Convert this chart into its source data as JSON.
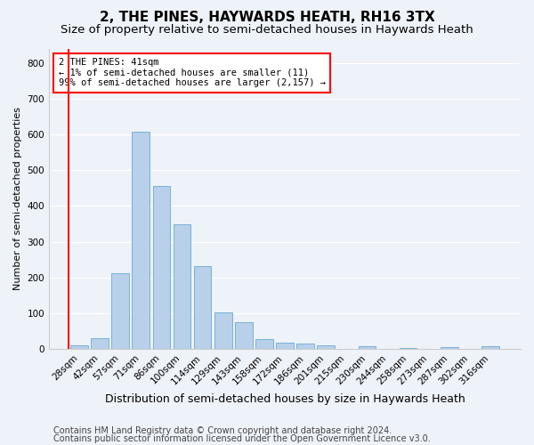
{
  "title": "2, THE PINES, HAYWARDS HEATH, RH16 3TX",
  "subtitle": "Size of property relative to semi-detached houses in Haywards Heath",
  "xlabel": "Distribution of semi-detached houses by size in Haywards Heath",
  "ylabel": "Number of semi-detached properties",
  "categories": [
    "28sqm",
    "42sqm",
    "57sqm",
    "71sqm",
    "86sqm",
    "100sqm",
    "114sqm",
    "129sqm",
    "143sqm",
    "158sqm",
    "172sqm",
    "186sqm",
    "201sqm",
    "215sqm",
    "230sqm",
    "244sqm",
    "258sqm",
    "273sqm",
    "287sqm",
    "302sqm",
    "316sqm"
  ],
  "values": [
    11,
    30,
    213,
    608,
    457,
    348,
    232,
    101,
    75,
    28,
    17,
    16,
    10,
    0,
    8,
    0,
    3,
    0,
    5,
    0,
    7
  ],
  "bar_color": "#b8d0ea",
  "bar_edge_color": "#6aaad4",
  "annotation_text": "2 THE PINES: 41sqm\n← 1% of semi-detached houses are smaller (11)\n99% of semi-detached houses are larger (2,157) →",
  "annotation_box_color": "white",
  "annotation_box_edge_color": "red",
  "vline_color": "red",
  "vline_x": -0.5,
  "ylim": [
    0,
    840
  ],
  "yticks": [
    0,
    100,
    200,
    300,
    400,
    500,
    600,
    700,
    800
  ],
  "footer1": "Contains HM Land Registry data © Crown copyright and database right 2024.",
  "footer2": "Contains public sector information licensed under the Open Government Licence v3.0.",
  "background_color": "#eef2f9",
  "grid_color": "#ffffff",
  "title_fontsize": 11,
  "subtitle_fontsize": 9.5,
  "ylabel_fontsize": 8,
  "xlabel_fontsize": 9,
  "tick_fontsize": 7.5,
  "footer_fontsize": 7,
  "annotation_fontsize": 7.5
}
